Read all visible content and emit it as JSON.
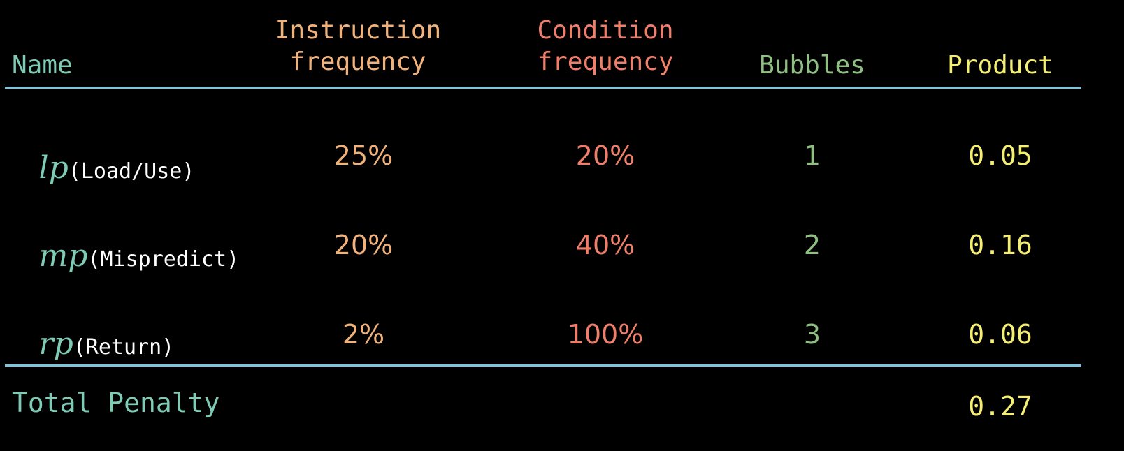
{
  "colors": {
    "background": "#000000",
    "name": "#7ecbb6",
    "instruction": "#f0b27a",
    "condition": "#ef7f6a",
    "bubbles": "#8fbf82",
    "product": "#f4ef72",
    "rule": "#7ec4dc"
  },
  "headers": {
    "name": "Name",
    "instruction_line1": "Instruction",
    "instruction_line2": "frequency",
    "condition_line1": "Condition",
    "condition_line2": "frequency",
    "bubbles": "Bubbles",
    "product": "Product"
  },
  "rows": [
    {
      "var": "lp",
      "label": "(Load/Use)",
      "instruction": "25%",
      "condition": "20%",
      "bubbles": "1",
      "product": "0.05"
    },
    {
      "var": "mp",
      "label": "(Mispredict)",
      "instruction": "20%",
      "condition": "40%",
      "bubbles": "2",
      "product": "0.16"
    },
    {
      "var": "rp",
      "label": "(Return)",
      "instruction": "2%",
      "condition": "100%",
      "bubbles": "3",
      "product": "0.06"
    }
  ],
  "total": {
    "label": "Total Penalty",
    "value": "0.27"
  }
}
